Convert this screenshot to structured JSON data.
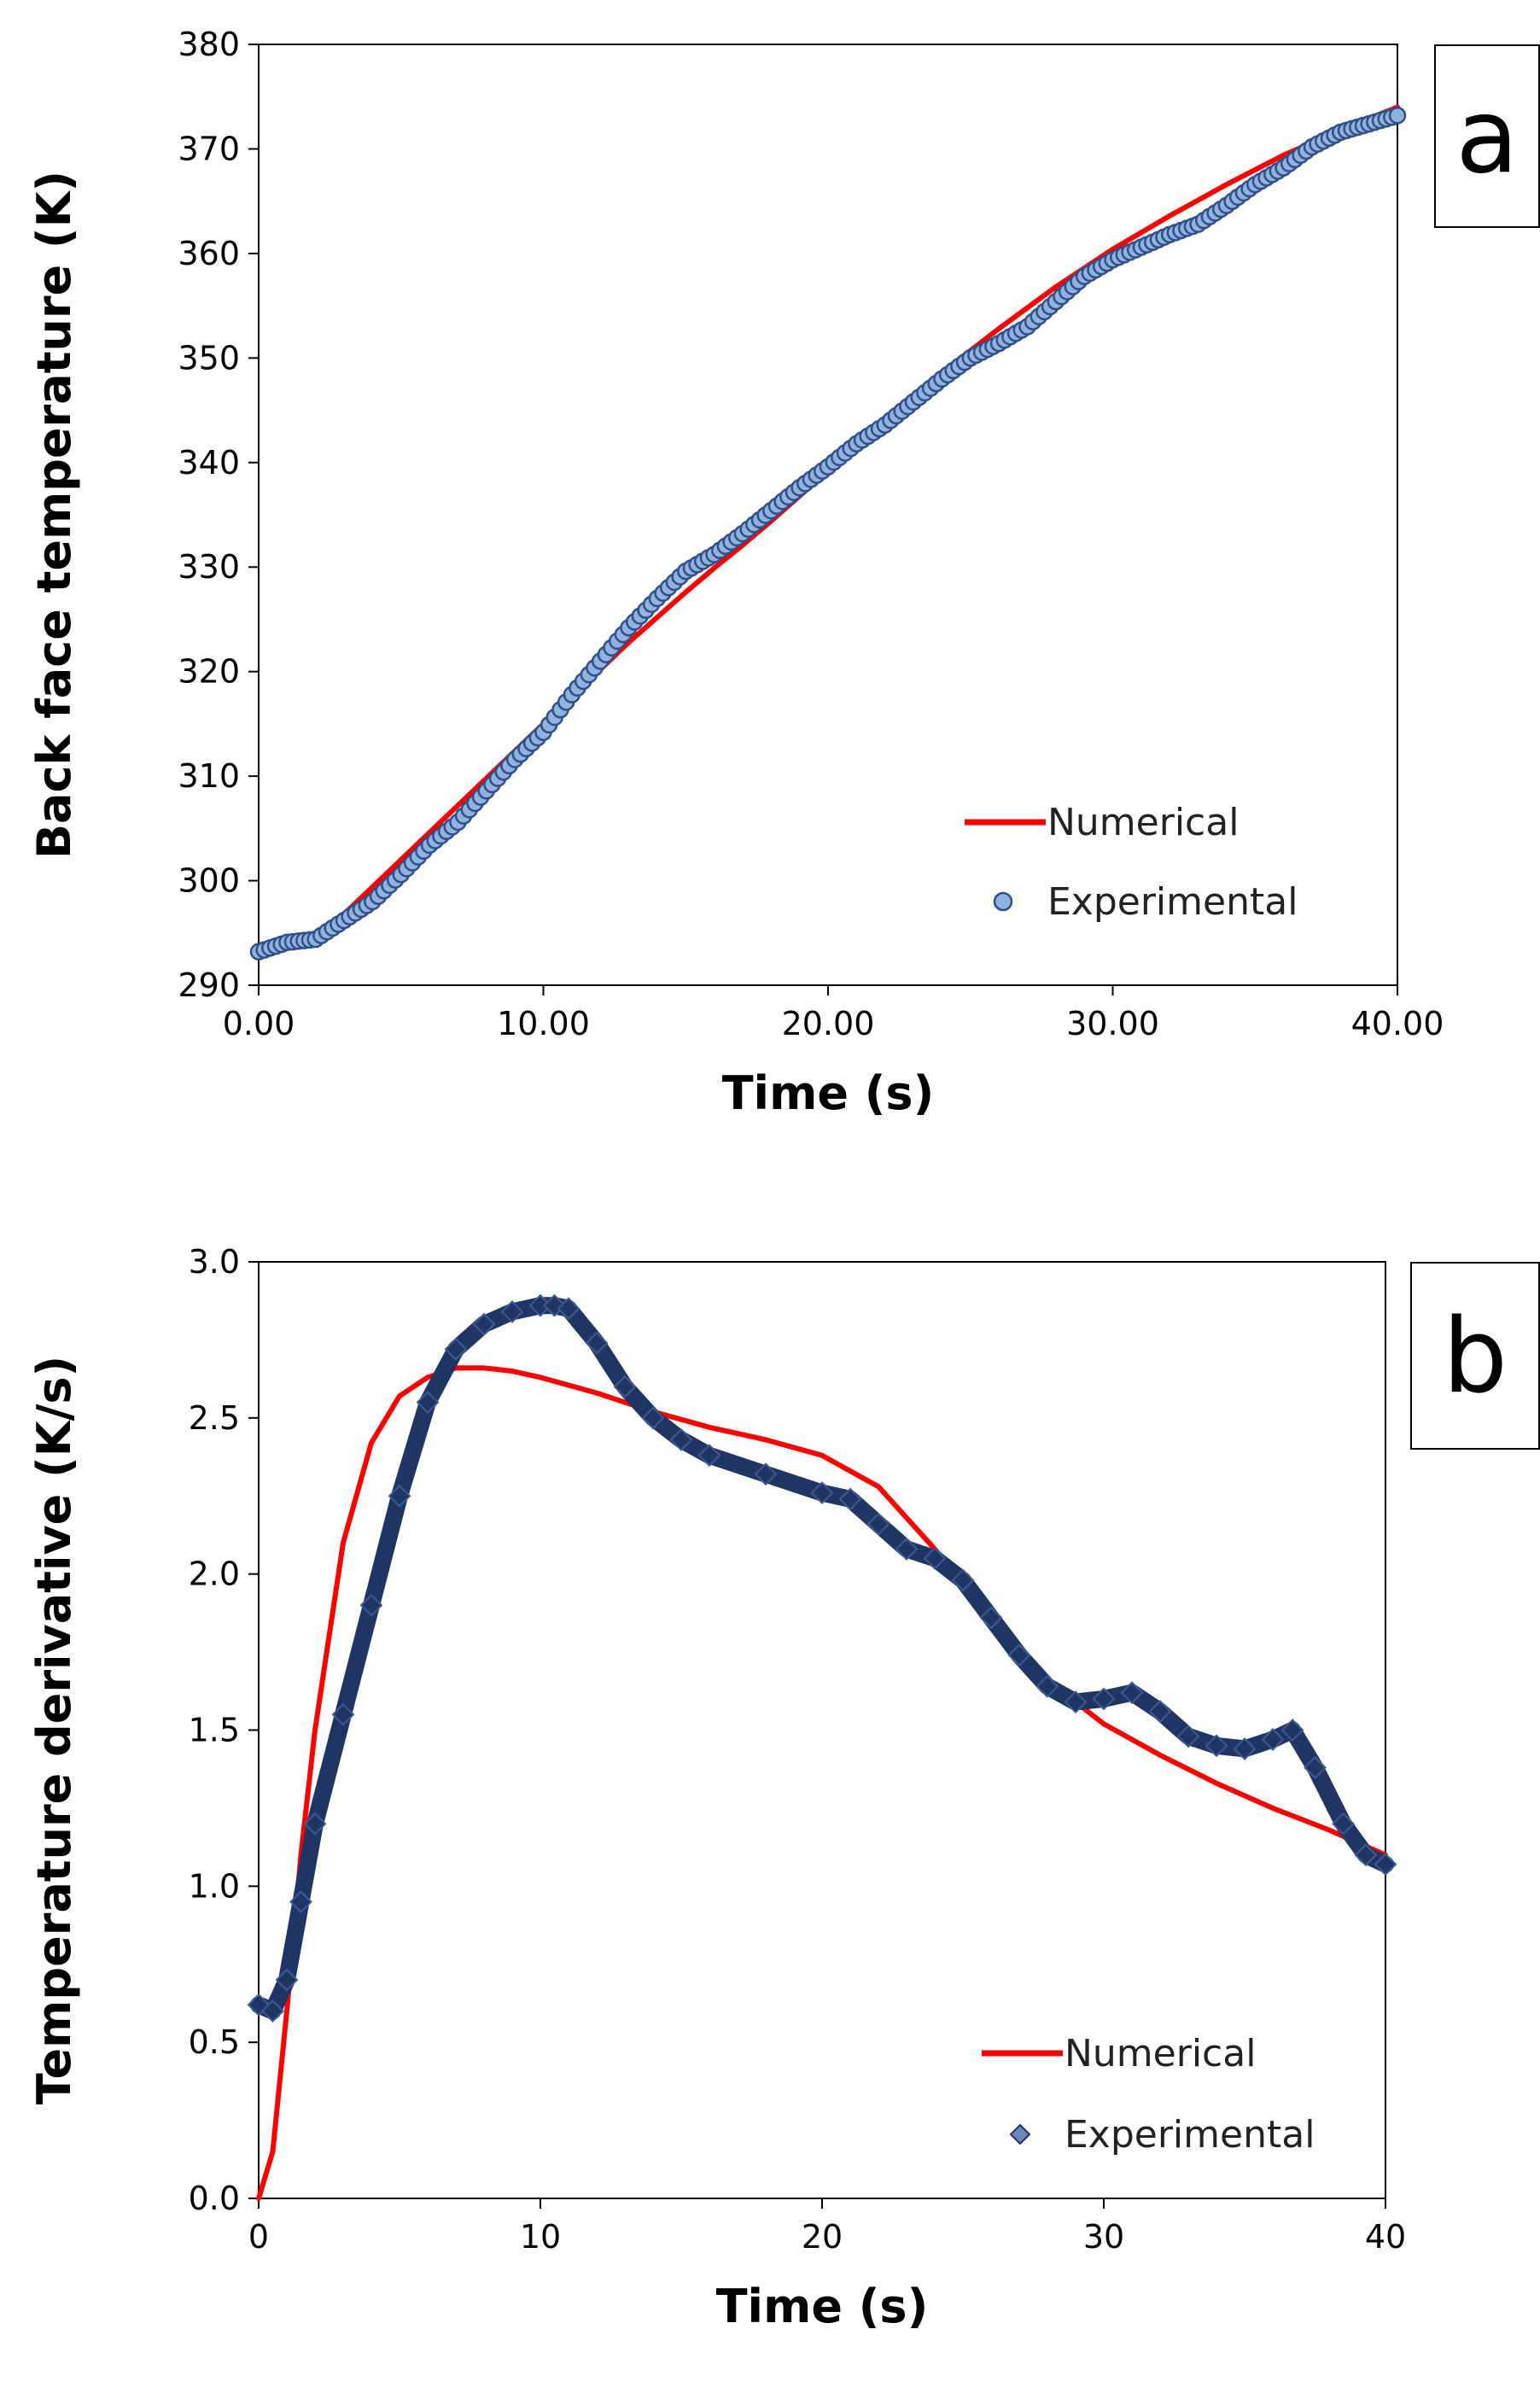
{
  "chart_data": [
    {
      "type": "line",
      "panel_label": "a",
      "xlabel": "Time (s)",
      "ylabel": "Back face temperature (K)",
      "xlim": [
        0,
        40
      ],
      "ylim": [
        290,
        380
      ],
      "xticks": [
        0,
        10,
        20,
        30,
        40
      ],
      "xtick_labels": [
        "0.00",
        "10.00",
        "20.00",
        "30.00",
        "40.00"
      ],
      "yticks": [
        290,
        300,
        310,
        320,
        330,
        340,
        350,
        360,
        370,
        380
      ],
      "ytick_labels": [
        "290",
        "300",
        "310",
        "320",
        "330",
        "340",
        "350",
        "360",
        "370",
        "380"
      ],
      "grid": false,
      "legend_position": "bottom-right",
      "series": [
        {
          "name": "Numerical",
          "style": "line",
          "color": "#ff0000",
          "x": [
            0,
            1,
            2,
            3,
            4,
            5,
            6,
            7,
            8,
            9,
            10,
            11,
            12,
            13,
            14,
            15,
            16,
            17,
            18,
            19,
            20,
            22,
            24,
            26,
            28,
            30,
            32,
            34,
            36,
            38,
            40
          ],
          "y": [
            293,
            293.6,
            294.8,
            296.8,
            299.4,
            302.0,
            304.6,
            307.2,
            309.8,
            312.4,
            315.0,
            317.6,
            320.2,
            322.8,
            325.2,
            327.6,
            329.9,
            332.1,
            334.4,
            336.8,
            339.2,
            344.0,
            348.6,
            352.8,
            356.8,
            360.4,
            363.6,
            366.6,
            369.4,
            371.8,
            374.0
          ]
        },
        {
          "name": "Experimental",
          "style": "markers",
          "marker": "circle",
          "color": "#8fb3dc",
          "edge_color": "#2f4f8a",
          "x": [
            0,
            1,
            2,
            3,
            4,
            5,
            6,
            7,
            8,
            9,
            10,
            11,
            12,
            13,
            14,
            15,
            16,
            17,
            18,
            19,
            20,
            21,
            22,
            23,
            24,
            25,
            26,
            27,
            28,
            29,
            30,
            31,
            32,
            33,
            34,
            35,
            36,
            37,
            38,
            39,
            40
          ],
          "y": [
            293.2,
            294.1,
            294.4,
            296.2,
            298.0,
            300.6,
            303.4,
            305.6,
            308.6,
            311.6,
            314.2,
            317.8,
            321.0,
            324.2,
            327.0,
            329.6,
            331.2,
            333.2,
            335.4,
            337.6,
            339.6,
            341.8,
            343.6,
            345.8,
            348.0,
            350.0,
            351.4,
            353.0,
            355.4,
            357.8,
            359.4,
            360.6,
            361.8,
            362.8,
            364.6,
            366.6,
            368.2,
            370.2,
            371.6,
            372.4,
            373.2
          ]
        }
      ]
    },
    {
      "type": "line",
      "panel_label": "b",
      "xlabel": "Time (s)",
      "ylabel": "Temperature derivative (K/s)",
      "xlim": [
        0,
        40
      ],
      "ylim": [
        0,
        3.0
      ],
      "xticks": [
        0,
        10,
        20,
        30,
        40
      ],
      "xtick_labels": [
        "0",
        "10",
        "20",
        "30",
        "40"
      ],
      "yticks": [
        0,
        0.5,
        1.0,
        1.5,
        2.0,
        2.5,
        3.0
      ],
      "ytick_labels": [
        "0.0",
        "0.5",
        "1.0",
        "1.5",
        "2.0",
        "2.5",
        "3.0"
      ],
      "grid": false,
      "legend_position": "bottom-right",
      "series": [
        {
          "name": "Numerical",
          "style": "line",
          "color": "#ff0000",
          "x": [
            0,
            0.5,
            1,
            1.5,
            2,
            3,
            4,
            5,
            6,
            7,
            8,
            9,
            10,
            12,
            14,
            16,
            18,
            20,
            22,
            24,
            26,
            28,
            30,
            32,
            34,
            36,
            38,
            40
          ],
          "y": [
            0,
            0.15,
            0.6,
            1.1,
            1.5,
            2.1,
            2.42,
            2.57,
            2.63,
            2.66,
            2.66,
            2.65,
            2.63,
            2.58,
            2.52,
            2.47,
            2.43,
            2.38,
            2.28,
            2.08,
            1.86,
            1.66,
            1.52,
            1.42,
            1.33,
            1.25,
            1.18,
            1.1
          ]
        },
        {
          "name": "Experimental",
          "style": "line-with-markers",
          "marker": "diamond",
          "color": "#1f3564",
          "x": [
            0,
            0.5,
            1,
            1.5,
            2,
            3,
            4,
            5,
            6,
            7,
            8,
            9,
            10,
            10.5,
            11,
            12,
            13,
            14,
            15,
            16,
            18,
            20,
            21,
            22,
            23,
            24,
            25,
            26,
            27,
            28,
            29,
            30,
            31,
            32,
            33,
            34,
            35,
            36,
            36.7,
            37.5,
            38.5,
            39.3,
            40
          ],
          "y": [
            0.62,
            0.6,
            0.7,
            0.95,
            1.2,
            1.55,
            1.9,
            2.25,
            2.55,
            2.72,
            2.8,
            2.84,
            2.86,
            2.86,
            2.85,
            2.74,
            2.6,
            2.5,
            2.43,
            2.38,
            2.32,
            2.26,
            2.24,
            2.16,
            2.08,
            2.05,
            1.98,
            1.86,
            1.74,
            1.64,
            1.59,
            1.6,
            1.62,
            1.56,
            1.48,
            1.45,
            1.44,
            1.47,
            1.5,
            1.38,
            1.2,
            1.1,
            1.07
          ]
        }
      ]
    }
  ]
}
